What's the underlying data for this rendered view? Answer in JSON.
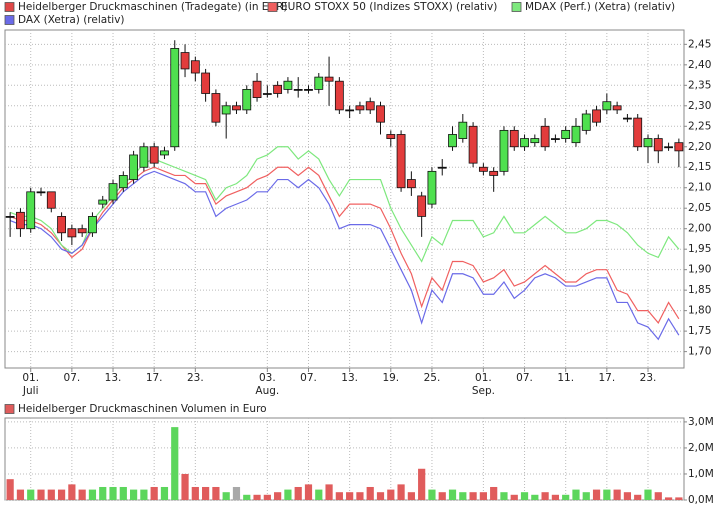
{
  "chart_data": [
    {
      "type": "candlestick",
      "categories": [
        null,
        null,
        "01. Juli",
        null,
        null,
        null,
        "07.",
        null,
        null,
        null,
        "13.",
        null,
        null,
        null,
        "17.",
        null,
        null,
        null,
        "23.",
        null,
        null,
        null,
        null,
        null,
        null,
        "03. Aug.",
        null,
        null,
        null,
        "07.",
        null,
        null,
        null,
        "13.",
        null,
        null,
        null,
        "19.",
        null,
        null,
        null,
        "25.",
        null,
        null,
        null,
        null,
        "01. Sep.",
        null,
        null,
        null,
        "07.",
        null,
        null,
        null,
        "11.",
        null,
        null,
        null,
        "17.",
        null,
        null,
        null,
        "23.",
        null,
        null,
        null
      ],
      "ylim": [
        1.66,
        2.485
      ],
      "yticks": [
        {
          "value": 1.7,
          "label": "1,70"
        },
        {
          "value": 1.75,
          "label": "1,75"
        },
        {
          "value": 1.8,
          "label": "1,80"
        },
        {
          "value": 1.85,
          "label": "1,85"
        },
        {
          "value": 1.9,
          "label": "1,90"
        },
        {
          "value": 1.95,
          "label": "1,95"
        },
        {
          "value": 2.0,
          "label": "2,00"
        },
        {
          "value": 2.05,
          "label": "2,05"
        },
        {
          "value": 2.1,
          "label": "2,10"
        },
        {
          "value": 2.15,
          "label": "2,15"
        },
        {
          "value": 2.2,
          "label": "2,20"
        },
        {
          "value": 2.25,
          "label": "2,25"
        },
        {
          "value": 2.3,
          "label": "2,30"
        },
        {
          "value": 2.35,
          "label": "2,35"
        },
        {
          "value": 2.4,
          "label": "2,40"
        },
        {
          "value": 2.45,
          "label": "2,45"
        }
      ],
      "grid": true,
      "candles": {
        "name": "Heidelberger Druckmaschinen (Tradegate) (in EUR)",
        "color": "#e04848",
        "up_color": "#4fe04f",
        "down_color": "#e23c3c",
        "open": [
          2.03,
          2.04,
          2.0,
          2.09,
          2.09,
          2.03,
          2.0,
          2.0,
          1.99,
          2.06,
          2.07,
          2.1,
          2.12,
          2.15,
          2.2,
          2.18,
          2.2,
          2.43,
          2.41,
          2.38,
          2.33,
          2.28,
          2.3,
          2.29,
          2.36,
          2.33,
          2.35,
          2.34,
          2.34,
          2.34,
          2.34,
          2.37,
          2.36,
          2.29,
          2.3,
          2.31,
          2.3,
          2.23,
          2.23,
          2.12,
          2.08,
          2.06,
          2.15,
          2.2,
          2.22,
          2.25,
          2.15,
          2.14,
          2.14,
          2.24,
          2.2,
          2.21,
          2.25,
          2.22,
          2.22,
          2.21,
          2.24,
          2.29,
          2.29,
          2.3,
          2.27,
          2.27,
          2.2,
          2.22,
          2.2,
          2.21
        ],
        "high": [
          2.04,
          2.05,
          2.1,
          2.1,
          2.09,
          2.04,
          2.01,
          2.01,
          2.04,
          2.08,
          2.12,
          2.14,
          2.19,
          2.21,
          2.21,
          2.2,
          2.46,
          2.45,
          2.42,
          2.39,
          2.34,
          2.31,
          2.31,
          2.35,
          2.38,
          2.35,
          2.36,
          2.37,
          2.37,
          2.35,
          2.38,
          2.42,
          2.37,
          2.3,
          2.31,
          2.32,
          2.31,
          2.24,
          2.24,
          2.14,
          2.09,
          2.15,
          2.17,
          2.25,
          2.28,
          2.26,
          2.16,
          2.15,
          2.25,
          2.25,
          2.23,
          2.23,
          2.27,
          2.23,
          2.25,
          2.27,
          2.29,
          2.3,
          2.33,
          2.31,
          2.28,
          2.28,
          2.23,
          2.23,
          2.21,
          2.22
        ],
        "low": [
          1.98,
          1.98,
          1.99,
          2.08,
          2.04,
          1.97,
          1.96,
          1.98,
          1.98,
          2.05,
          2.06,
          2.09,
          2.11,
          2.14,
          2.15,
          2.17,
          2.19,
          2.37,
          2.36,
          2.31,
          2.25,
          2.22,
          2.28,
          2.28,
          2.31,
          2.32,
          2.32,
          2.33,
          2.32,
          2.33,
          2.33,
          2.3,
          2.28,
          2.27,
          2.28,
          2.28,
          2.23,
          2.2,
          2.09,
          2.08,
          1.98,
          2.05,
          2.13,
          2.19,
          2.21,
          2.15,
          2.13,
          2.09,
          2.13,
          2.19,
          2.19,
          2.2,
          2.19,
          2.21,
          2.21,
          2.2,
          2.23,
          2.25,
          2.28,
          2.28,
          2.26,
          2.19,
          2.16,
          2.16,
          2.19,
          2.15
        ],
        "close": [
          2.03,
          2.0,
          2.09,
          2.09,
          2.05,
          1.99,
          1.98,
          1.99,
          2.03,
          2.07,
          2.11,
          2.13,
          2.18,
          2.2,
          2.16,
          2.19,
          2.44,
          2.39,
          2.38,
          2.33,
          2.26,
          2.3,
          2.29,
          2.34,
          2.32,
          2.33,
          2.33,
          2.36,
          2.34,
          2.34,
          2.37,
          2.36,
          2.29,
          2.29,
          2.29,
          2.29,
          2.26,
          2.22,
          2.1,
          2.1,
          2.03,
          2.14,
          2.15,
          2.23,
          2.26,
          2.16,
          2.14,
          2.13,
          2.24,
          2.2,
          2.22,
          2.22,
          2.2,
          2.22,
          2.24,
          2.25,
          2.28,
          2.26,
          2.31,
          2.29,
          2.27,
          2.2,
          2.22,
          2.19,
          2.2,
          2.19
        ]
      },
      "series": [
        {
          "name": "EURO STOXX 50 (Indizes STOXX) (relativ)",
          "color": "#f06060",
          "values": [
            2.03,
            2.02,
            2.02,
            2.01,
            1.99,
            1.96,
            1.93,
            1.95,
            2.0,
            2.04,
            2.07,
            2.1,
            2.12,
            2.14,
            2.15,
            2.14,
            2.13,
            2.13,
            2.11,
            2.11,
            2.06,
            2.08,
            2.09,
            2.1,
            2.12,
            2.13,
            2.15,
            2.15,
            2.13,
            2.15,
            2.13,
            2.08,
            2.03,
            2.06,
            2.06,
            2.06,
            2.05,
            2.0,
            1.94,
            1.89,
            1.81,
            1.88,
            1.85,
            1.92,
            1.92,
            1.91,
            1.87,
            1.88,
            1.9,
            1.86,
            1.87,
            1.89,
            1.91,
            1.89,
            1.87,
            1.87,
            1.89,
            1.9,
            1.9,
            1.85,
            1.84,
            1.8,
            1.8,
            1.77,
            1.82,
            1.78
          ]
        },
        {
          "name": "MDAX (Perf.) (Xetra) (relativ)",
          "color": "#7ee87e",
          "values": [
            2.04,
            2.03,
            2.03,
            2.02,
            2.0,
            1.96,
            1.94,
            1.96,
            2.02,
            2.05,
            2.08,
            2.11,
            2.13,
            2.16,
            2.17,
            2.16,
            2.15,
            2.14,
            2.13,
            2.12,
            2.07,
            2.1,
            2.11,
            2.13,
            2.17,
            2.18,
            2.2,
            2.2,
            2.17,
            2.19,
            2.17,
            2.12,
            2.08,
            2.12,
            2.12,
            2.12,
            2.12,
            2.05,
            2.0,
            1.96,
            1.92,
            1.98,
            1.96,
            2.02,
            2.02,
            2.02,
            1.98,
            1.99,
            2.03,
            1.99,
            1.99,
            2.01,
            2.03,
            2.01,
            1.99,
            1.99,
            2.0,
            2.02,
            2.02,
            2.01,
            1.99,
            1.96,
            1.94,
            1.93,
            1.98,
            1.95
          ]
        },
        {
          "name": "DAX (Xetra) (relativ)",
          "color": "#6a6ae8",
          "values": [
            2.02,
            2.01,
            2.01,
            2.0,
            1.98,
            1.95,
            1.94,
            1.96,
            2.0,
            2.03,
            2.06,
            2.09,
            2.11,
            2.13,
            2.14,
            2.13,
            2.12,
            2.11,
            2.09,
            2.09,
            2.03,
            2.05,
            2.06,
            2.07,
            2.09,
            2.09,
            2.12,
            2.12,
            2.1,
            2.12,
            2.1,
            2.06,
            2.0,
            2.01,
            2.01,
            2.01,
            2.0,
            1.95,
            1.9,
            1.85,
            1.77,
            1.85,
            1.82,
            1.89,
            1.89,
            1.88,
            1.84,
            1.84,
            1.87,
            1.83,
            1.85,
            1.88,
            1.89,
            1.88,
            1.86,
            1.86,
            1.87,
            1.88,
            1.88,
            1.82,
            1.82,
            1.77,
            1.76,
            1.73,
            1.78,
            1.74
          ]
        }
      ]
    },
    {
      "type": "bar",
      "ylim": [
        0,
        3.15
      ],
      "yticks": [
        {
          "value": 0,
          "label": "0,0M"
        },
        {
          "value": 1,
          "label": "1,0M"
        },
        {
          "value": 2,
          "label": "2,0M"
        },
        {
          "value": 3,
          "label": "3,0M"
        }
      ],
      "grid": true,
      "series": [
        {
          "name": "Heidelberger Druckmaschinen Volumen in Euro",
          "color": "#e05c5c",
          "values": [
            0.8,
            0.4,
            0.4,
            0.4,
            0.4,
            0.4,
            0.6,
            0.4,
            0.4,
            0.5,
            0.5,
            0.5,
            0.4,
            0.4,
            0.5,
            0.5,
            2.8,
            1.0,
            0.5,
            0.5,
            0.5,
            0.3,
            0.5,
            0.2,
            0.2,
            0.2,
            0.3,
            0.4,
            0.5,
            0.6,
            0.4,
            0.6,
            0.3,
            0.3,
            0.3,
            0.5,
            0.3,
            0.4,
            0.6,
            0.3,
            1.2,
            0.4,
            0.3,
            0.4,
            0.3,
            0.3,
            0.3,
            0.5,
            0.3,
            0.2,
            0.3,
            0.2,
            0.3,
            0.2,
            0.2,
            0.4,
            0.3,
            0.4,
            0.4,
            0.4,
            0.3,
            0.2,
            0.4,
            0.3,
            0.1,
            0.1
          ],
          "colors": [
            "#e05c5c",
            "#e05c5c",
            "#5cd65c",
            "#e05c5c",
            "#e05c5c",
            "#e05c5c",
            "#e05c5c",
            "#e05c5c",
            "#5cd65c",
            "#5cd65c",
            "#5cd65c",
            "#5cd65c",
            "#5cd65c",
            "#5cd65c",
            "#e05c5c",
            "#5cd65c",
            "#5cd65c",
            "#e05c5c",
            "#e05c5c",
            "#e05c5c",
            "#e05c5c",
            "#5cd65c",
            "#a8a8a8",
            "#5cd65c",
            "#e05c5c",
            "#e05c5c",
            "#e05c5c",
            "#5cd65c",
            "#e05c5c",
            "#e05c5c",
            "#5cd65c",
            "#e05c5c",
            "#e05c5c",
            "#e05c5c",
            "#e05c5c",
            "#e05c5c",
            "#e05c5c",
            "#e05c5c",
            "#e05c5c",
            "#e05c5c",
            "#e05c5c",
            "#5cd65c",
            "#e05c5c",
            "#5cd65c",
            "#5cd65c",
            "#e05c5c",
            "#e05c5c",
            "#e05c5c",
            "#5cd65c",
            "#e05c5c",
            "#5cd65c",
            "#5cd65c",
            "#e05c5c",
            "#e05c5c",
            "#5cd65c",
            "#5cd65c",
            "#5cd65c",
            "#e05c5c",
            "#5cd65c",
            "#e05c5c",
            "#e05c5c",
            "#e05c5c",
            "#5cd65c",
            "#e05c5c",
            "#e05c5c",
            "#e05c5c"
          ]
        }
      ]
    }
  ]
}
